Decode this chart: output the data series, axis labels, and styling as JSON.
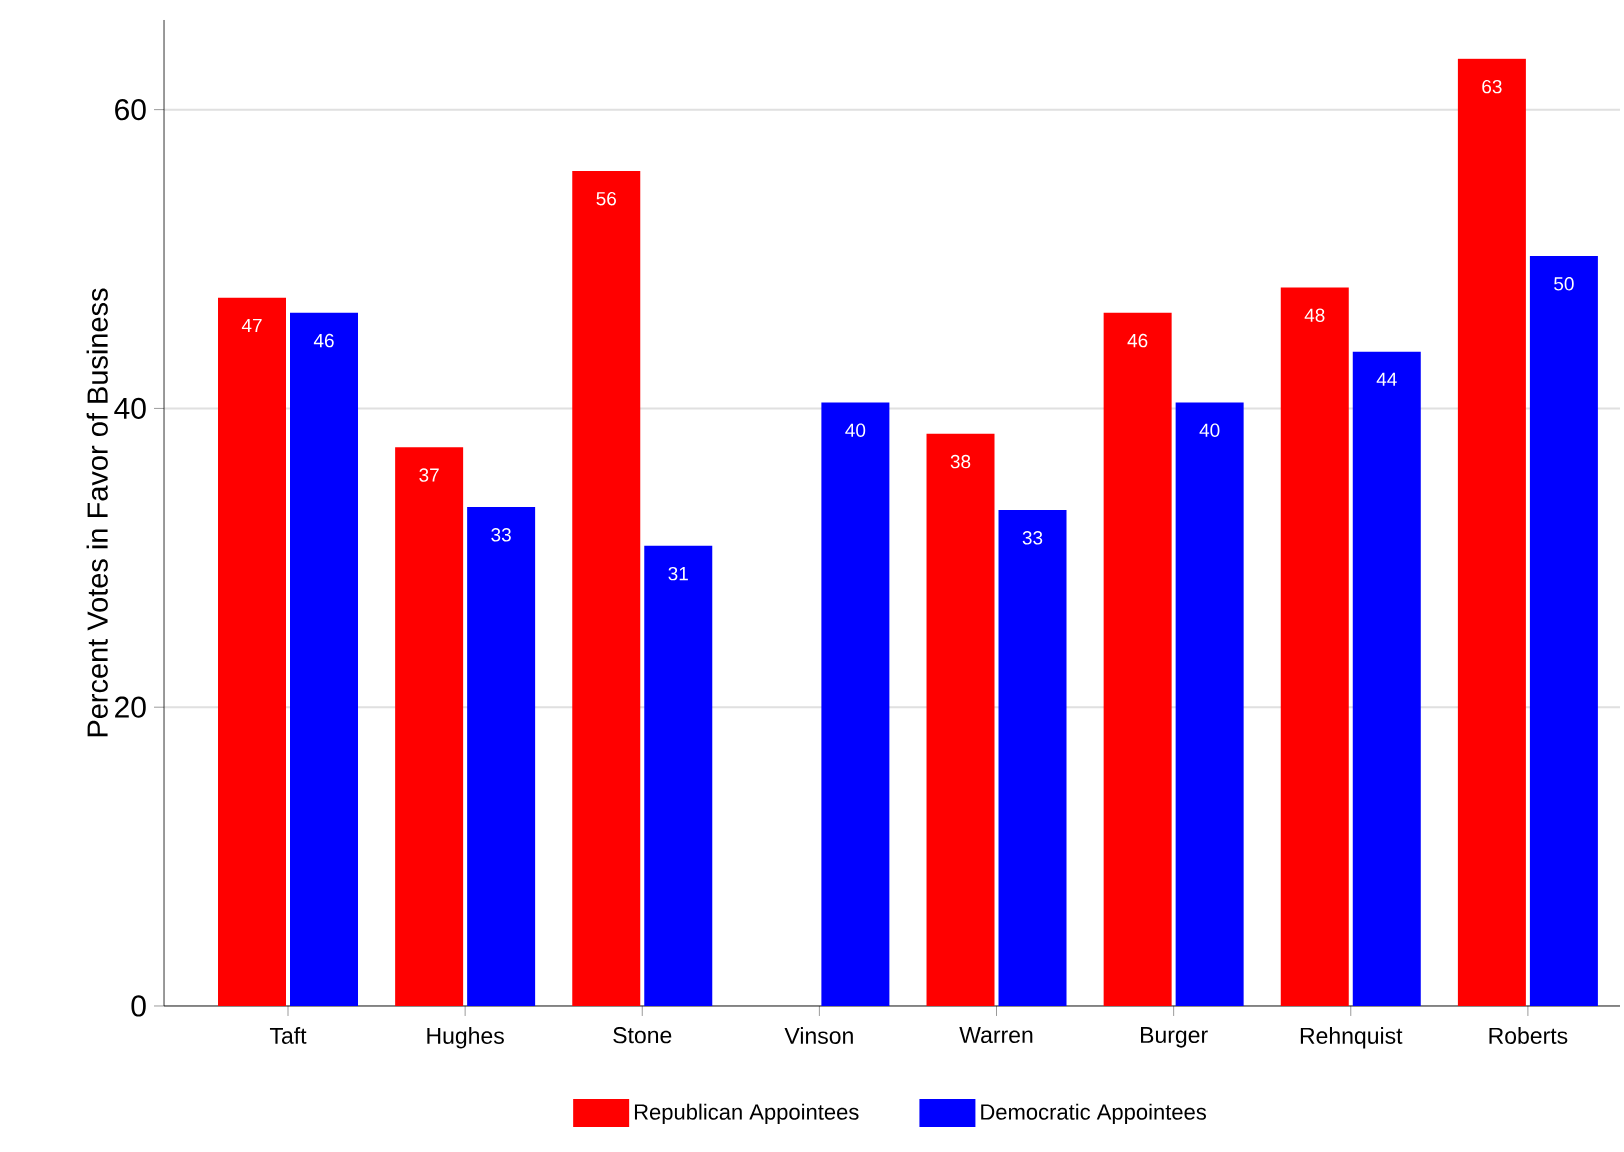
{
  "chart_data": {
    "type": "bar",
    "ylabel": "Percent Votes in Favor of Business",
    "categories": [
      "Taft",
      "Hughes",
      "Stone",
      "Vinson",
      "Warren",
      "Burger",
      "Rehnquist",
      "Roberts"
    ],
    "series": [
      {
        "name": "Republican Appointees",
        "color": "#ff0000",
        "values": [
          47.4,
          37.4,
          55.9,
          null,
          38.3,
          46.4,
          48.1,
          63.4
        ],
        "value_labels": [
          "47",
          "37",
          "56",
          null,
          "38",
          "46",
          "48",
          "63"
        ]
      },
      {
        "name": "Democratic Appointees",
        "color": "#0000ff",
        "values": [
          46.4,
          33.4,
          30.8,
          40.4,
          33.2,
          40.4,
          43.8,
          50.2
        ],
        "value_labels": [
          "46",
          "33",
          "31",
          "40",
          "33",
          "40",
          "44",
          "50"
        ]
      }
    ],
    "ylim": [
      0,
      66
    ],
    "yticks": [
      0,
      20,
      40,
      60
    ],
    "grid": "y",
    "legend": "bottom"
  }
}
